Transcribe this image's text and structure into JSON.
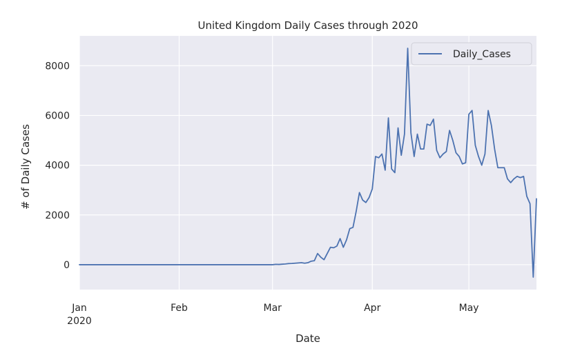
{
  "chart_data": {
    "type": "line",
    "title": "United Kingdom Daily Cases through 2020",
    "xlabel": "Date",
    "ylabel": "# of Daily Cases",
    "xlim": [
      "2020-01-01",
      "2020-05-22"
    ],
    "ylim": [
      -1000,
      9200
    ],
    "grid": true,
    "legend_position": "top-right",
    "colors": {
      "background": "#eaeaf2",
      "grid": "#ffffff",
      "line": "#4c72b0",
      "text": "#262626"
    },
    "x_ticks": [
      {
        "date": "2020-01-01",
        "label": "Jan",
        "sublabel": "2020"
      },
      {
        "date": "2020-02-01",
        "label": "Feb",
        "sublabel": ""
      },
      {
        "date": "2020-03-01",
        "label": "Mar",
        "sublabel": ""
      },
      {
        "date": "2020-04-01",
        "label": "Apr",
        "sublabel": ""
      },
      {
        "date": "2020-05-01",
        "label": "May",
        "sublabel": ""
      }
    ],
    "y_ticks": [
      {
        "value": 0,
        "label": "0"
      },
      {
        "value": 2000,
        "label": "2000"
      },
      {
        "value": 4000,
        "label": "4000"
      },
      {
        "value": 6000,
        "label": "6000"
      },
      {
        "value": 8000,
        "label": "8000"
      }
    ],
    "series": [
      {
        "name": "Daily_Cases",
        "color": "#4c72b0",
        "points": [
          {
            "x": "2020-01-01",
            "y": 0
          },
          {
            "x": "2020-02-01",
            "y": 0
          },
          {
            "x": "2020-03-01",
            "y": 0
          },
          {
            "x": "2020-03-02",
            "y": 15
          },
          {
            "x": "2020-03-03",
            "y": 10
          },
          {
            "x": "2020-03-04",
            "y": 20
          },
          {
            "x": "2020-03-05",
            "y": 30
          },
          {
            "x": "2020-03-06",
            "y": 45
          },
          {
            "x": "2020-03-07",
            "y": 50
          },
          {
            "x": "2020-03-08",
            "y": 60
          },
          {
            "x": "2020-03-09",
            "y": 70
          },
          {
            "x": "2020-03-10",
            "y": 80
          },
          {
            "x": "2020-03-11",
            "y": 60
          },
          {
            "x": "2020-03-12",
            "y": 80
          },
          {
            "x": "2020-03-13",
            "y": 140
          },
          {
            "x": "2020-03-14",
            "y": 160
          },
          {
            "x": "2020-03-15",
            "y": 450
          },
          {
            "x": "2020-03-16",
            "y": 300
          },
          {
            "x": "2020-03-17",
            "y": 200
          },
          {
            "x": "2020-03-18",
            "y": 450
          },
          {
            "x": "2020-03-19",
            "y": 700
          },
          {
            "x": "2020-03-20",
            "y": 680
          },
          {
            "x": "2020-03-21",
            "y": 750
          },
          {
            "x": "2020-03-22",
            "y": 1050
          },
          {
            "x": "2020-03-23",
            "y": 700
          },
          {
            "x": "2020-03-24",
            "y": 1000
          },
          {
            "x": "2020-03-25",
            "y": 1450
          },
          {
            "x": "2020-03-26",
            "y": 1500
          },
          {
            "x": "2020-03-27",
            "y": 2150
          },
          {
            "x": "2020-03-28",
            "y": 2900
          },
          {
            "x": "2020-03-29",
            "y": 2600
          },
          {
            "x": "2020-03-30",
            "y": 2500
          },
          {
            "x": "2020-03-31",
            "y": 2700
          },
          {
            "x": "2020-04-01",
            "y": 3050
          },
          {
            "x": "2020-04-02",
            "y": 4350
          },
          {
            "x": "2020-04-03",
            "y": 4300
          },
          {
            "x": "2020-04-04",
            "y": 4450
          },
          {
            "x": "2020-04-05",
            "y": 3800
          },
          {
            "x": "2020-04-06",
            "y": 5900
          },
          {
            "x": "2020-04-07",
            "y": 3850
          },
          {
            "x": "2020-04-08",
            "y": 3700
          },
          {
            "x": "2020-04-09",
            "y": 5500
          },
          {
            "x": "2020-04-10",
            "y": 4400
          },
          {
            "x": "2020-04-11",
            "y": 5250
          },
          {
            "x": "2020-04-12",
            "y": 8700
          },
          {
            "x": "2020-04-13",
            "y": 5300
          },
          {
            "x": "2020-04-14",
            "y": 4350
          },
          {
            "x": "2020-04-15",
            "y": 5250
          },
          {
            "x": "2020-04-16",
            "y": 4650
          },
          {
            "x": "2020-04-17",
            "y": 4650
          },
          {
            "x": "2020-04-18",
            "y": 5650
          },
          {
            "x": "2020-04-19",
            "y": 5600
          },
          {
            "x": "2020-04-20",
            "y": 5850
          },
          {
            "x": "2020-04-21",
            "y": 4600
          },
          {
            "x": "2020-04-22",
            "y": 4300
          },
          {
            "x": "2020-04-23",
            "y": 4450
          },
          {
            "x": "2020-04-24",
            "y": 4550
          },
          {
            "x": "2020-04-25",
            "y": 5400
          },
          {
            "x": "2020-04-26",
            "y": 5000
          },
          {
            "x": "2020-04-27",
            "y": 4500
          },
          {
            "x": "2020-04-28",
            "y": 4350
          },
          {
            "x": "2020-04-29",
            "y": 4050
          },
          {
            "x": "2020-04-30",
            "y": 4100
          },
          {
            "x": "2020-05-01",
            "y": 6050
          },
          {
            "x": "2020-05-02",
            "y": 6200
          },
          {
            "x": "2020-05-03",
            "y": 4800
          },
          {
            "x": "2020-05-04",
            "y": 4350
          },
          {
            "x": "2020-05-05",
            "y": 4000
          },
          {
            "x": "2020-05-06",
            "y": 4450
          },
          {
            "x": "2020-05-07",
            "y": 6200
          },
          {
            "x": "2020-05-08",
            "y": 5600
          },
          {
            "x": "2020-05-09",
            "y": 4650
          },
          {
            "x": "2020-05-10",
            "y": 3900
          },
          {
            "x": "2020-05-11",
            "y": 3900
          },
          {
            "x": "2020-05-12",
            "y": 3900
          },
          {
            "x": "2020-05-13",
            "y": 3450
          },
          {
            "x": "2020-05-14",
            "y": 3300
          },
          {
            "x": "2020-05-15",
            "y": 3450
          },
          {
            "x": "2020-05-16",
            "y": 3550
          },
          {
            "x": "2020-05-17",
            "y": 3500
          },
          {
            "x": "2020-05-18",
            "y": 3550
          },
          {
            "x": "2020-05-19",
            "y": 2750
          },
          {
            "x": "2020-05-20",
            "y": 2450
          },
          {
            "x": "2020-05-21",
            "y": -500
          },
          {
            "x": "2020-05-22",
            "y": 2650
          }
        ]
      }
    ]
  }
}
